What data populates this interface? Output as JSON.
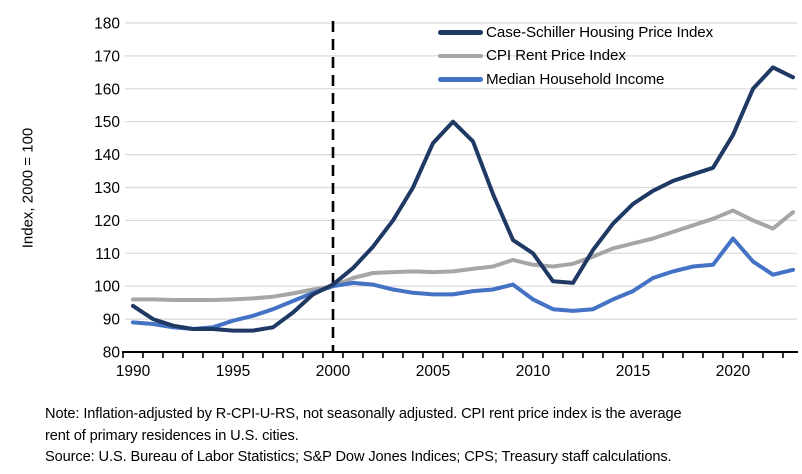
{
  "chart_data": {
    "type": "line",
    "title": "",
    "xlabel": "",
    "ylabel": "Index, 2000 = 100",
    "ylim": [
      80,
      180
    ],
    "yticks": [
      80,
      90,
      100,
      110,
      120,
      130,
      140,
      150,
      160,
      170,
      180
    ],
    "xtick_labels": [
      1990,
      1995,
      2000,
      2005,
      2010,
      2015,
      2020
    ],
    "x": [
      1990,
      1991,
      1992,
      1993,
      1994,
      1995,
      1996,
      1997,
      1998,
      1999,
      2000,
      2001,
      2002,
      2003,
      2004,
      2005,
      2006,
      2007,
      2008,
      2009,
      2010,
      2011,
      2012,
      2013,
      2014,
      2015,
      2016,
      2017,
      2018,
      2019,
      2020,
      2021,
      2022,
      2023
    ],
    "series": [
      {
        "name": "Case-Schiller Housing Price Index",
        "color": "#1F3864",
        "values": [
          94,
          90,
          88,
          87,
          87,
          86.5,
          86.5,
          87.5,
          92,
          97.5,
          100.5,
          105.5,
          112,
          120,
          130,
          143.5,
          150,
          144,
          128,
          114,
          110,
          101.5,
          101,
          111,
          119,
          125,
          129,
          132,
          134,
          136,
          146,
          160,
          166.5,
          163.5
        ]
      },
      {
        "name": "CPI Rent Price Index",
        "color": "#A6A6A6",
        "values": [
          96,
          96,
          95.8,
          95.8,
          95.8,
          96,
          96.3,
          96.8,
          97.8,
          99,
          100,
          102.5,
          104,
          104.3,
          104.5,
          104.3,
          104.5,
          105.3,
          106,
          108,
          106.5,
          106,
          106.8,
          109,
          111.5,
          113,
          114.5,
          116.5,
          118.5,
          120.5,
          123,
          120,
          117.5,
          122.5
        ]
      },
      {
        "name": "Median Household Income",
        "color": "#4472C4",
        "values": [
          89,
          88.5,
          87.5,
          87,
          87.5,
          89.5,
          91,
          93,
          95.5,
          98,
          100,
          101,
          100.5,
          99,
          98,
          97.5,
          97.5,
          98.5,
          99,
          100.5,
          96,
          93,
          92.5,
          93,
          96,
          98.5,
          102.5,
          104.5,
          106,
          106.5,
          114.5,
          107.5,
          103.5,
          105
        ]
      }
    ],
    "grid": "horizontal",
    "legend_position": "top-right-inside",
    "annotations": [
      {
        "type": "vline-dashed",
        "x": 2000,
        "color": "#000000"
      }
    ],
    "gridline_color": "#D9D9D9",
    "axis_color": "#000000"
  },
  "notes": {
    "lines": [
      "Note: Inflation-adjusted by R-CPI-U-RS, not seasonally adjusted. CPI rent price index is the average",
      "rent of primary residences in U.S. cities.",
      "Source: U.S. Bureau of Labor Statistics; S&P Dow Jones Indices; CPS; Treasury staff calculations."
    ]
  }
}
